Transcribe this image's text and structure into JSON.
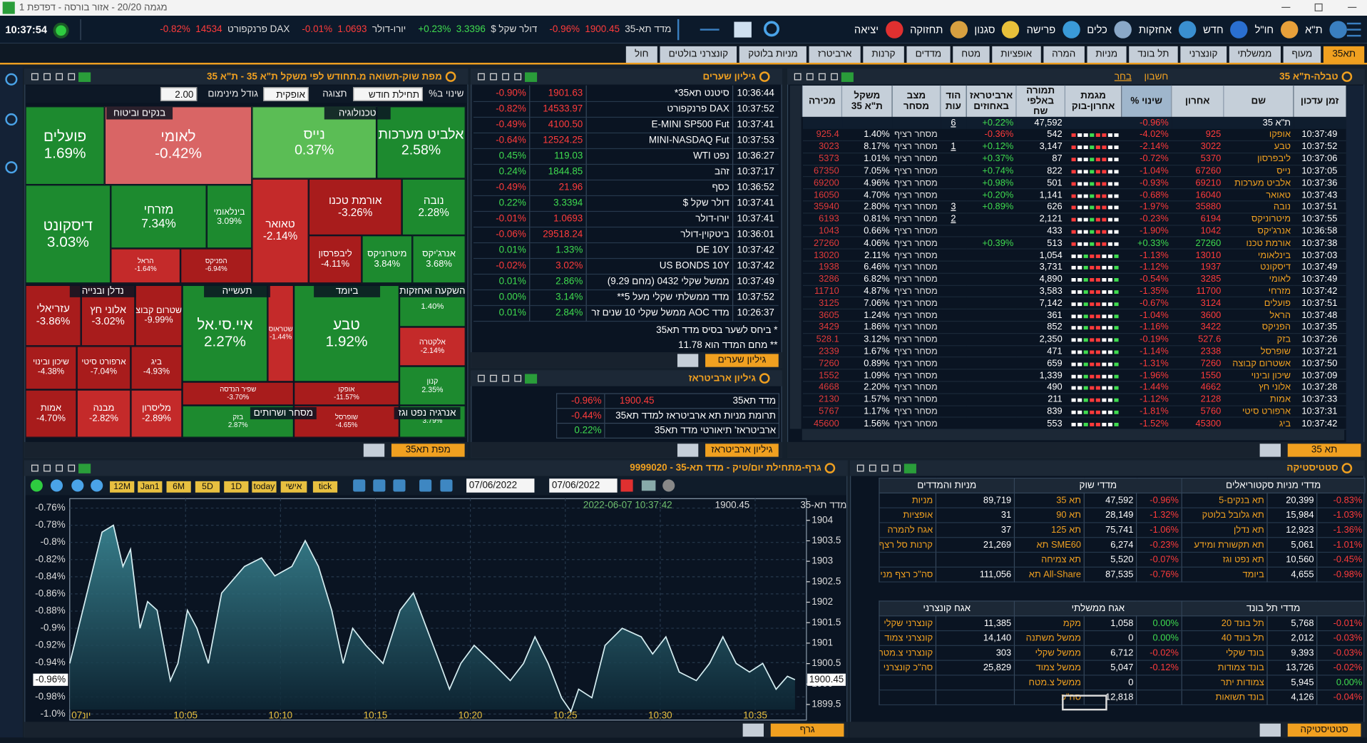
{
  "title_bar": "מגמה 20/20 - אזור בורסה - דפדפת 1",
  "toolbar": {
    "clock": "10:37:54",
    "menu": [
      "ת\"א",
      "חו\"ל",
      "חדש",
      "אחזקות",
      "כלים",
      "פרישה",
      "סגנון",
      "תחזוקה",
      "יציאה"
    ],
    "ticker": [
      {
        "name": "מדד תא-35",
        "value": "1900.45",
        "change": "-0.96%"
      },
      {
        "name": "דולר שקל $",
        "value": "3.3396",
        "change": "+0.23%"
      },
      {
        "name": "יורו-דולר",
        "value": "1.0693",
        "change": "-0.01%"
      },
      {
        "name": "DAX פרנקפורט",
        "value": "14534",
        "change": "-0.82%"
      }
    ]
  },
  "tabs": [
    "תא35",
    "מעוף",
    "ממשלתי",
    "קונצרני",
    "תל בונד",
    "מניות",
    "המרה",
    "אופציות",
    "מטח",
    "מדדים",
    "קרנות",
    "ארביטרז",
    "מניות בלוטק",
    "קונצרני בולטים",
    "חול"
  ],
  "heatmap": {
    "title": "מפת שוק-תשואה מ.תחודש לפי משקל ת\"א 35 - ת\"א 35",
    "controls": [
      "שינוי ב%",
      "תחילת חודש",
      "תצוגה",
      "אופקית",
      "גודל מינימום",
      "2.00"
    ],
    "sectors": [
      "בנקים וביטוח",
      "טכנולוגיה",
      "נדלן ובנייה",
      "תעשייה",
      "ביומד",
      "השקעה ואחזקות",
      "מסחר ושרותים",
      "אנרגיה נפט וגז"
    ],
    "tiles": [
      {
        "name": "פועלים",
        "change": "1.69%"
      },
      {
        "name": "לאומי",
        "change": "-0.42%"
      },
      {
        "name": "נייס",
        "change": "0.37%"
      },
      {
        "name": "אלביט מערכות",
        "change": "2.58%"
      },
      {
        "name": "דיסקונט",
        "change": "3.03%"
      },
      {
        "name": "מזרחי",
        "change": "7.34%"
      },
      {
        "name": "בינלאומי",
        "change": "3.09%"
      },
      {
        "name": "הראל",
        "change": "-1.64%"
      },
      {
        "name": "הפניקס",
        "change": "-6.94%"
      },
      {
        "name": "טאואר",
        "change": "-2.14%"
      },
      {
        "name": "אורמת טכנו",
        "change": "-3.26%"
      },
      {
        "name": "נובה",
        "change": "2.28%"
      },
      {
        "name": "ליבפרסון",
        "change": "-4.11%"
      },
      {
        "name": "מיטרוניקס",
        "change": "3.84%"
      },
      {
        "name": "אנרג'יקס",
        "change": "3.68%"
      },
      {
        "name": "עזריאלי",
        "change": "-3.86%"
      },
      {
        "name": "אלוני חץ",
        "change": "-3.02%"
      },
      {
        "name": "אשטרום קבוצה",
        "change": "-9.99%"
      },
      {
        "name": "שיכון ובינוי",
        "change": "-4.38%"
      },
      {
        "name": "ארפורט סיטי",
        "change": "-7.04%"
      },
      {
        "name": "ביג",
        "change": "-4.93%"
      },
      {
        "name": "אמות",
        "change": "-4.70%"
      },
      {
        "name": "מבנה",
        "change": "-2.82%"
      },
      {
        "name": "מליסרון",
        "change": "-2.89%"
      },
      {
        "name": "איי.סי.אל",
        "change": "2.27%"
      },
      {
        "name": "שטראוס",
        "change": "-1.44%"
      },
      {
        "name": "שפיר הנדסה",
        "change": "-3.70%"
      },
      {
        "name": "טבע",
        "change": "1.92%"
      },
      {
        "name": "אופקו",
        "change": "-11.57%"
      },
      {
        "change": "1.40%"
      },
      {
        "name": "אלקטרה",
        "change": "-2.14%"
      },
      {
        "name": "קנון",
        "change": "2.35%"
      },
      {
        "name": "בזק",
        "change": "2.87%"
      },
      {
        "name": "שופרסל",
        "change": "-4.65%"
      },
      {
        "change": "3.79%"
      }
    ],
    "footer_tab": "מפת תא35"
  },
  "quotes": {
    "title": "גיליון שערים",
    "rows": [
      [
        "10:36:44",
        "סיטנט תא35*",
        "1901.63",
        "-0.90%"
      ],
      [
        "10:37:52",
        "DAX פרנקפורט",
        "14533.97",
        "-0.82%"
      ],
      [
        "10:37:41",
        "E-MINI SP500 Fut",
        "4100.50",
        "-0.49%"
      ],
      [
        "10:37:53",
        "MINI-NASDAQ Fut",
        "12524.25",
        "-0.64%"
      ],
      [
        "10:36:27",
        "נפט WTI",
        "119.03",
        "0.45%"
      ],
      [
        "10:37:17",
        "זהב",
        "1844.85",
        "0.24%"
      ],
      [
        "10:36:52",
        "כסף",
        "21.96",
        "-0.49%"
      ],
      [
        "10:37:41",
        "דולר שקל $",
        "3.3394",
        "0.22%"
      ],
      [
        "10:37:41",
        "יורו-דולר",
        "1.0693",
        "-0.01%"
      ],
      [
        "10:36:01",
        "ביטקוין-דולר",
        "29518.24",
        "-0.06%"
      ],
      [
        "10:37:42",
        "DE 10Y",
        "1.33%",
        "0.01%"
      ],
      [
        "10:37:42",
        "US BONDS 10Y",
        "3.02%",
        "-0.02%"
      ],
      [
        "10:37:49",
        "ממשל שקלי 0432 (מחם 9.29)",
        "2.86%",
        "0.01%"
      ],
      [
        "10:37:52",
        "מדד ממשלתי שקלי מעל 5**",
        "3.14%",
        "0.00%"
      ],
      [
        "10:26:37",
        "מדד AOC ממשל שקלי 10 שנים זר",
        "2.84%",
        "0.01%"
      ]
    ],
    "notes": [
      "* ביחס לשער בסיס מדד תא35",
      "** מחם המדד הוא 11.78"
    ],
    "footer_tab": "גיליון שערים"
  },
  "arbitrage": {
    "title": "גיליון ארביטראז",
    "rows": [
      [
        "מדד תא35",
        "1900.45",
        "-0.96%"
      ],
      [
        "תרומת מניות תא ארביטראז למדד תא35",
        null,
        "-0.44%"
      ],
      [
        "ארביטראז' תיאורטי מדד תא35",
        null,
        "0.22%"
      ]
    ],
    "footer_tab": "גיליון ארביטראז"
  },
  "table35": {
    "title": "טבלה-ת\"א 35",
    "account": "חשבון",
    "choose": "בחר",
    "columns": [
      "זמן עדכון",
      "שם",
      "אחרון",
      "שינוי %",
      "מגמת אחרון-בוק",
      "תמורה באלפי שח",
      "ארביטראז באחוזים",
      "הוד עות",
      "מצב מסחר",
      "משקל ת\"א 35",
      "מכירה"
    ],
    "summary": [
      null,
      "ת\"א 35",
      null,
      "-0.96%",
      "47,592",
      "+0.22%",
      "6",
      null,
      null,
      null
    ],
    "rows": [
      [
        "10:37:49",
        "אופקו",
        "925",
        "-4.02%",
        "542",
        "-0.36%",
        null,
        "מסחר רציף",
        "1.40%",
        "925.4"
      ],
      [
        "10:37:52",
        "טבע",
        "3022",
        "-2.14%",
        "3,147",
        "+0.12%",
        "1",
        "מסחר רציף",
        "8.17%",
        "3023"
      ],
      [
        "10:37:06",
        "ליבפרסון",
        "5370",
        "-0.72%",
        "87",
        "+0.37%",
        null,
        "מסחר רציף",
        "1.01%",
        "5373"
      ],
      [
        "10:37:05",
        "נייס",
        "67260",
        "-1.04%",
        "822",
        "+0.74%",
        null,
        "מסחר רציף",
        "7.05%",
        "67350"
      ],
      [
        "10:37:36",
        "אלביט מערכות",
        "69210",
        "-0.93%",
        "501",
        "+0.98%",
        null,
        "מסחר רציף",
        "4.96%",
        "69200"
      ],
      [
        "10:37:43",
        "טאואר",
        "16040",
        "-0.68%",
        "1,141",
        "+0.20%",
        null,
        "מסחר רציף",
        "4.70%",
        "16050"
      ],
      [
        "10:37:51",
        "נובה",
        "35880",
        "-1.97%",
        "626",
        "+0.89%",
        "3",
        "מסחר רציף",
        "2.80%",
        "35940"
      ],
      [
        "10:37:55",
        "מיטרוניקס",
        "6194",
        "-0.23%",
        "2,121",
        null,
        "2",
        "מסחר רציף",
        "0.81%",
        "6193"
      ],
      [
        "10:36:58",
        "אנרג'יקס",
        "1042",
        "-1.90%",
        "433",
        null,
        null,
        "מסחר רציף",
        "0.66%",
        "1043"
      ],
      [
        "10:37:38",
        "אורמת טכנו",
        "27260",
        "+0.33%",
        "513",
        "+0.39%",
        null,
        "מסחר רציף",
        "4.06%",
        "27260"
      ],
      [
        "10:37:03",
        "בינלאומי",
        "13010",
        "-1.13%",
        "1,054",
        null,
        null,
        "מסחר רציף",
        "2.11%",
        "13020"
      ],
      [
        "10:37:49",
        "דיסקונט",
        "1937",
        "-1.12%",
        "3,731",
        null,
        null,
        "מסחר רציף",
        "6.46%",
        "1938"
      ],
      [
        "10:37:49",
        "לאומי",
        "3285",
        "-0.54%",
        "4,890",
        null,
        null,
        "מסחר רציף",
        "6.82%",
        "3286"
      ],
      [
        "10:37:42",
        "מזרחי",
        "11700",
        "-1.35%",
        "3,583",
        null,
        null,
        "מסחר רציף",
        "4.87%",
        "11710"
      ],
      [
        "10:37:51",
        "פועלים",
        "3124",
        "-0.67%",
        "7,142",
        null,
        null,
        "מסחר רציף",
        "7.06%",
        "3125"
      ],
      [
        "10:37:48",
        "הראל",
        "3600",
        "-1.04%",
        "361",
        null,
        null,
        "מסחר רציף",
        "1.24%",
        "3605"
      ],
      [
        "10:37:35",
        "הפניקס",
        "3422",
        "-1.16%",
        "852",
        null,
        null,
        "מסחר רציף",
        "1.86%",
        "3429"
      ],
      [
        "10:37:26",
        "בזק",
        "527.6",
        "-0.19%",
        "2,350",
        null,
        null,
        "מסחר רציף",
        "3.12%",
        "528.1"
      ],
      [
        "10:37:21",
        "שופרסל",
        "2338",
        "-1.14%",
        "471",
        null,
        null,
        "מסחר רציף",
        "1.67%",
        "2339"
      ],
      [
        "10:37:50",
        "אשטרום קבוצה",
        "7260",
        "-1.31%",
        "659",
        null,
        null,
        "מסחר רציף",
        "0.89%",
        "7260"
      ],
      [
        "10:37:09",
        "שיכון ובינוי",
        "1550",
        "-1.96%",
        "1,339",
        null,
        null,
        "מסחר רציף",
        "1.09%",
        "1552"
      ],
      [
        "10:37:28",
        "אלוני חץ",
        "4662",
        "-1.44%",
        "490",
        null,
        null,
        "מסחר רציף",
        "2.20%",
        "4668"
      ],
      [
        "10:37:33",
        "אמות",
        "2128",
        "-1.12%",
        "211",
        null,
        null,
        "מסחר רציף",
        "1.57%",
        "2130"
      ],
      [
        "10:37:31",
        "ארפורט סיטי",
        "5760",
        "-1.81%",
        "839",
        null,
        null,
        "מסחר רציף",
        "1.17%",
        "5767"
      ],
      [
        "10:37:42",
        "ביג",
        "45300",
        "-1.52%",
        "553",
        null,
        null,
        "מסחר רציף",
        "1.56%",
        "45600"
      ]
    ],
    "footer_tab": "תא 35"
  },
  "chart_data": {
    "type": "line",
    "title": "גרף-מתחילת יום/טיק - מדד תא-35 - 9999020",
    "toolbar": [
      "12M",
      "Jan1",
      "6M",
      "5D",
      "1D",
      "today",
      "אישי",
      "tick"
    ],
    "date_from": "07/06/2022",
    "date_to": "07/06/2022",
    "info_time": "2022-06-07 10:37:42",
    "last_value": "1900.45",
    "current_change": "-0.96%",
    "start_label": "07יונ",
    "x": [
      598.9,
      600.6,
      601.2,
      601.7,
      602.1,
      602.6,
      603.0,
      603.5,
      604.2,
      604.6,
      605.1,
      605.6,
      606.2,
      606.9,
      608.1,
      609.0,
      609.7,
      610.6,
      611.3,
      612.0,
      612.7,
      613.3,
      613.8,
      614.5,
      615.4,
      616.3,
      617.0,
      617.7,
      618.4,
      618.9,
      619.5,
      620.2,
      621.2,
      622.1,
      622.8,
      623.4,
      624.1,
      624.8,
      625.3,
      625.7,
      626.4,
      627.1,
      628.0,
      629.0,
      629.6,
      630.3,
      631.0,
      631.9,
      632.6,
      633.3,
      634.0,
      634.7,
      635.4,
      636.1,
      636.7,
      637.1
    ],
    "series": [
      {
        "name": "מדד תא-35",
        "color": "#d6eef2",
        "values": [
          -0.941,
          -0.788,
          -0.78,
          -0.828,
          -0.808,
          -0.9,
          -0.869,
          -0.879,
          -0.961,
          -0.941,
          -0.879,
          -0.9,
          -0.941,
          -0.859,
          -0.828,
          -0.818,
          -0.839,
          -0.828,
          -0.798,
          -0.828,
          -0.879,
          -0.941,
          -0.9,
          -0.92,
          -0.941,
          -0.879,
          -0.859,
          -0.9,
          -0.941,
          -0.971,
          -0.941,
          -0.92,
          -0.941,
          -0.961,
          -0.941,
          -0.91,
          -0.941,
          -0.981,
          -0.997,
          -0.971,
          -0.981,
          -0.92,
          -0.9,
          -0.91,
          -0.93,
          -0.91,
          -0.951,
          -0.961,
          -0.941,
          -0.91,
          -0.941,
          -0.951,
          -0.941,
          -0.971,
          -0.956,
          -0.96
        ]
      }
    ],
    "xlim": [
      598.9,
      637.7
    ],
    "xticks": [
      {
        "value": 605,
        "label": "10:05"
      },
      {
        "value": 610,
        "label": "10:10"
      },
      {
        "value": 615,
        "label": "10:15"
      },
      {
        "value": 620,
        "label": "10:20"
      },
      {
        "value": 625,
        "label": "10:25"
      },
      {
        "value": 630,
        "label": "10:30"
      },
      {
        "value": 635,
        "label": "10:35"
      }
    ],
    "ylim": [
      -1.007,
      -0.749
    ],
    "yticks": [
      {
        "value": -0.76,
        "label": "-0.76%"
      },
      {
        "value": -0.78,
        "label": "-0.78%"
      },
      {
        "value": -0.8,
        "label": "-0.8%"
      },
      {
        "value": -0.82,
        "label": "-0.82%"
      },
      {
        "value": -0.84,
        "label": "-0.84%"
      },
      {
        "value": -0.86,
        "label": "-0.86%"
      },
      {
        "value": -0.88,
        "label": "-0.88%"
      },
      {
        "value": -0.9,
        "label": "-0.9%"
      },
      {
        "value": -0.92,
        "label": "-0.92%"
      },
      {
        "value": -0.94,
        "label": "-0.94%"
      },
      {
        "value": -0.98,
        "label": "-0.98%"
      },
      {
        "value": -1.0,
        "label": "-1.0%"
      }
    ],
    "y2lim": [
      1899.12,
      1904.53
    ],
    "y2ticks": [
      1904,
      1903.5,
      1903,
      1902.5,
      1902,
      1901.5,
      1901,
      1900.5,
      1900,
      1899.5
    ],
    "grid": true,
    "footer_tab": "גרף"
  },
  "statistics": {
    "title": "סטטיסטיקה",
    "groups": [
      {
        "headers": [
          "מניות והמדדים",
          "מדדי שוק",
          "מדדי מניות סקטוריאלים"
        ],
        "rows": [
          [
            "מניות",
            "89,719",
            "תא 35",
            "47,592",
            "-0.96%",
            "תא בנקים-5",
            "20,399",
            "-0.83%"
          ],
          [
            "אופציות",
            "31",
            "תא 90",
            "28,149",
            "-1.32%",
            "תא גלובל בלוטק",
            "15,984",
            "-1.03%"
          ],
          [
            "אגח להמרה",
            "37",
            "תא 125",
            "75,741",
            "-1.06%",
            "תא נדלן",
            "12,923",
            "-1.36%"
          ],
          [
            "קרנות סל רצף",
            "21,269",
            "SME60 תא",
            "6,274",
            "-0.23%",
            "תא תקשורת ומידע",
            "5,061",
            "-1.01%"
          ],
          [
            null,
            null,
            "תא צמיחה",
            "5,520",
            "-0.07%",
            "תא נפט וגז",
            "10,560",
            "-0.45%"
          ],
          [
            "סה\"כ רצף מניות",
            "111,056",
            "All-Share תא",
            "87,535",
            "-0.76%",
            "ביומד",
            "4,655",
            "-0.98%"
          ]
        ]
      },
      {
        "headers": [
          "אגח קונצרני",
          "אגח ממשלתי",
          "מדדי תל בונד"
        ],
        "rows": [
          [
            "קונצרני שקלי",
            "11,385",
            "מקמ",
            "1,058",
            "0.00%",
            "תל בונד 20",
            "5,768",
            "-0.01%"
          ],
          [
            "קונצרני צמוד",
            "14,140",
            "ממשל משתנה",
            "0",
            "0.00%",
            "תל בונד 40",
            "2,012",
            "-0.03%"
          ],
          [
            "קונצרני צ.מטח",
            "303",
            "ממשל שקלי",
            "6,712",
            "-0.02%",
            "בונד שקלי",
            "9,393",
            "-0.03%"
          ],
          [
            "סה\"כ קונצרני",
            "25,829",
            "ממשל צמוד",
            "5,047",
            "-0.12%",
            "בונד צמודות",
            "13,726",
            "-0.02%"
          ],
          [
            null,
            null,
            "ממשל צ.מטח",
            "0",
            null,
            "צמודות יתר",
            "5,945",
            "0.00%"
          ],
          [
            null,
            null,
            "סה\"כ",
            "12,818",
            null,
            "בונד תשואות",
            "4,126",
            "-0.04%"
          ]
        ]
      }
    ],
    "footer_tab": "סטטיסטיקה"
  }
}
